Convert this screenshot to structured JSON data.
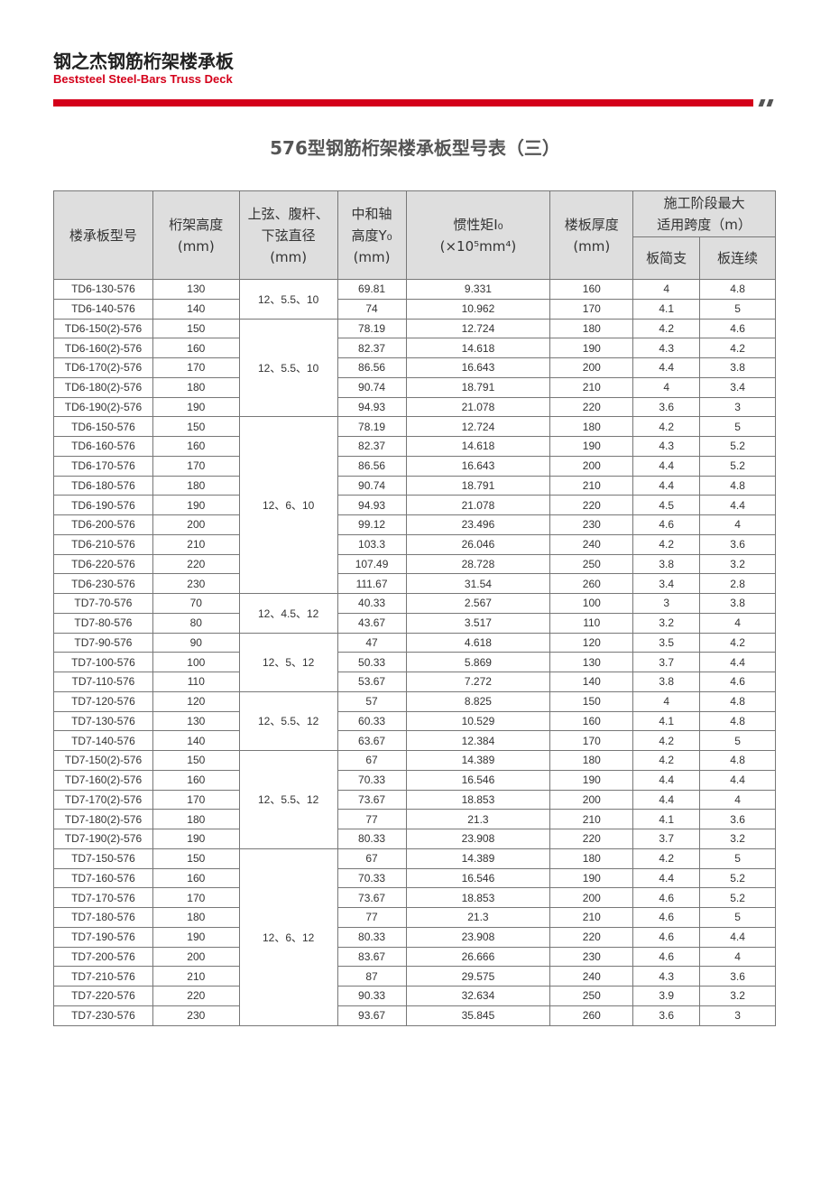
{
  "header": {
    "brand_cn": "钢之杰钢筋桁架楼承板",
    "brand_en": "Beststeel Steel-Bars Truss Deck",
    "accent_color": "#d4001a"
  },
  "title": "576型钢筋桁架楼承板型号表（三）",
  "table": {
    "columns": {
      "model": "楼承板型号",
      "truss_height": [
        "桁架高度",
        "(mm)"
      ],
      "diameter": [
        "上弦、腹杆、",
        "下弦直径",
        "(mm)"
      ],
      "neutral_axis": [
        "中和轴",
        "高度Y₀",
        "(mm)"
      ],
      "inertia": [
        "惯性矩I₀",
        "(×10⁵mm⁴)"
      ],
      "slab_thickness": [
        "楼板厚度",
        "(mm)"
      ],
      "span_group": [
        "施工阶段最大",
        "适用跨度（m）"
      ],
      "simple": "板简支",
      "continuous": "板连续"
    },
    "groups": [
      {
        "diameter": "12、5.5、10",
        "rows": [
          [
            "TD6-130-576",
            "130",
            "69.81",
            "9.331",
            "160",
            "4",
            "4.8"
          ],
          [
            "TD6-140-576",
            "140",
            "74",
            "10.962",
            "170",
            "4.1",
            "5"
          ]
        ]
      },
      {
        "diameter": "12、5.5、10",
        "rows": [
          [
            "TD6-150(2)-576",
            "150",
            "78.19",
            "12.724",
            "180",
            "4.2",
            "4.6"
          ],
          [
            "TD6-160(2)-576",
            "160",
            "82.37",
            "14.618",
            "190",
            "4.3",
            "4.2"
          ],
          [
            "TD6-170(2)-576",
            "170",
            "86.56",
            "16.643",
            "200",
            "4.4",
            "3.8"
          ],
          [
            "TD6-180(2)-576",
            "180",
            "90.74",
            "18.791",
            "210",
            "4",
            "3.4"
          ],
          [
            "TD6-190(2)-576",
            "190",
            "94.93",
            "21.078",
            "220",
            "3.6",
            "3"
          ]
        ]
      },
      {
        "diameter": "12、6、10",
        "rows": [
          [
            "TD6-150-576",
            "150",
            "78.19",
            "12.724",
            "180",
            "4.2",
            "5"
          ],
          [
            "TD6-160-576",
            "160",
            "82.37",
            "14.618",
            "190",
            "4.3",
            "5.2"
          ],
          [
            "TD6-170-576",
            "170",
            "86.56",
            "16.643",
            "200",
            "4.4",
            "5.2"
          ],
          [
            "TD6-180-576",
            "180",
            "90.74",
            "18.791",
            "210",
            "4.4",
            "4.8"
          ],
          [
            "TD6-190-576",
            "190",
            "94.93",
            "21.078",
            "220",
            "4.5",
            "4.4"
          ],
          [
            "TD6-200-576",
            "200",
            "99.12",
            "23.496",
            "230",
            "4.6",
            "4"
          ],
          [
            "TD6-210-576",
            "210",
            "103.3",
            "26.046",
            "240",
            "4.2",
            "3.6"
          ],
          [
            "TD6-220-576",
            "220",
            "107.49",
            "28.728",
            "250",
            "3.8",
            "3.2"
          ],
          [
            "TD6-230-576",
            "230",
            "111.67",
            "31.54",
            "260",
            "3.4",
            "2.8"
          ]
        ]
      },
      {
        "diameter": "12、4.5、12",
        "rows": [
          [
            "TD7-70-576",
            "70",
            "40.33",
            "2.567",
            "100",
            "3",
            "3.8"
          ],
          [
            "TD7-80-576",
            "80",
            "43.67",
            "3.517",
            "110",
            "3.2",
            "4"
          ]
        ]
      },
      {
        "diameter": "12、5、12",
        "rows": [
          [
            "TD7-90-576",
            "90",
            "47",
            "4.618",
            "120",
            "3.5",
            "4.2"
          ],
          [
            "TD7-100-576",
            "100",
            "50.33",
            "5.869",
            "130",
            "3.7",
            "4.4"
          ],
          [
            "TD7-110-576",
            "110",
            "53.67",
            "7.272",
            "140",
            "3.8",
            "4.6"
          ]
        ]
      },
      {
        "diameter": "12、5.5、12",
        "rows": [
          [
            "TD7-120-576",
            "120",
            "57",
            "8.825",
            "150",
            "4",
            "4.8"
          ],
          [
            "TD7-130-576",
            "130",
            "60.33",
            "10.529",
            "160",
            "4.1",
            "4.8"
          ],
          [
            "TD7-140-576",
            "140",
            "63.67",
            "12.384",
            "170",
            "4.2",
            "5"
          ]
        ]
      },
      {
        "diameter": "12、5.5、12",
        "rows": [
          [
            "TD7-150(2)-576",
            "150",
            "67",
            "14.389",
            "180",
            "4.2",
            "4.8"
          ],
          [
            "TD7-160(2)-576",
            "160",
            "70.33",
            "16.546",
            "190",
            "4.4",
            "4.4"
          ],
          [
            "TD7-170(2)-576",
            "170",
            "73.67",
            "18.853",
            "200",
            "4.4",
            "4"
          ],
          [
            "TD7-180(2)-576",
            "180",
            "77",
            "21.3",
            "210",
            "4.1",
            "3.6"
          ],
          [
            "TD7-190(2)-576",
            "190",
            "80.33",
            "23.908",
            "220",
            "3.7",
            "3.2"
          ]
        ]
      },
      {
        "diameter": "12、6、12",
        "rows": [
          [
            "TD7-150-576",
            "150",
            "67",
            "14.389",
            "180",
            "4.2",
            "5"
          ],
          [
            "TD7-160-576",
            "160",
            "70.33",
            "16.546",
            "190",
            "4.4",
            "5.2"
          ],
          [
            "TD7-170-576",
            "170",
            "73.67",
            "18.853",
            "200",
            "4.6",
            "5.2"
          ],
          [
            "TD7-180-576",
            "180",
            "77",
            "21.3",
            "210",
            "4.6",
            "5"
          ],
          [
            "TD7-190-576",
            "190",
            "80.33",
            "23.908",
            "220",
            "4.6",
            "4.4"
          ],
          [
            "TD7-200-576",
            "200",
            "83.67",
            "26.666",
            "230",
            "4.6",
            "4"
          ],
          [
            "TD7-210-576",
            "210",
            "87",
            "29.575",
            "240",
            "4.3",
            "3.6"
          ],
          [
            "TD7-220-576",
            "220",
            "90.33",
            "32.634",
            "250",
            "3.9",
            "3.2"
          ],
          [
            "TD7-230-576",
            "230",
            "93.67",
            "35.845",
            "260",
            "3.6",
            "3"
          ]
        ]
      }
    ]
  }
}
